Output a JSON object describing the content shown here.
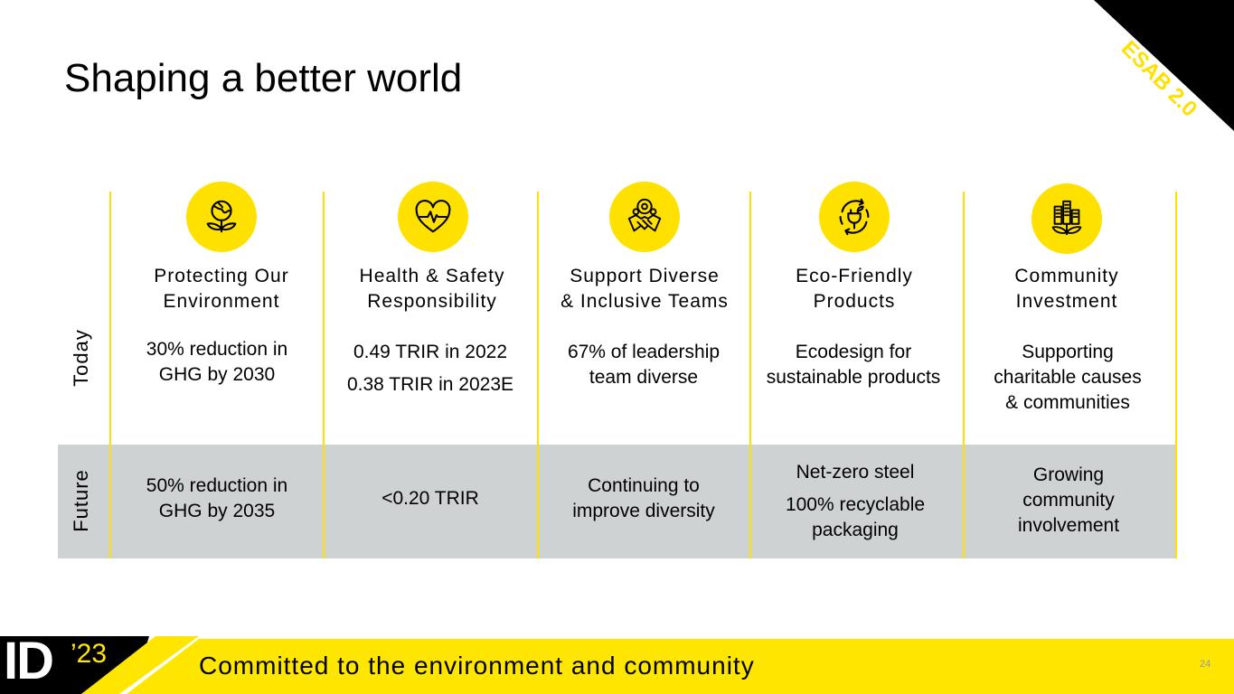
{
  "title": "Shaping a better world",
  "badge": "ESAB 2.0",
  "rows": {
    "today": "Today",
    "future": "Future"
  },
  "columns": [
    {
      "icon": "globe-plant-icon",
      "title": "Protecting Our\nEnvironment",
      "today": [
        "30% reduction in\nGHG by 2030"
      ],
      "future": [
        "50% reduction in\nGHG by 2035"
      ]
    },
    {
      "icon": "heart-pulse-icon",
      "title": "Health & Safety\nResponsibility",
      "today": [
        "0.49 TRIR in 2022",
        "0.38 TRIR in 2023E"
      ],
      "future": [
        "<0.20 TRIR"
      ]
    },
    {
      "icon": "team-handshake-icon",
      "title": "Support Diverse\n& Inclusive Teams",
      "today": [
        "67% of leadership\nteam diverse"
      ],
      "future": [
        "Continuing to\nimprove diversity"
      ]
    },
    {
      "icon": "eco-plug-icon",
      "title": "Eco-Friendly\nProducts",
      "today": [
        "Ecodesign for\nsustainable products"
      ],
      "future": [
        "Net-zero steel",
        "100% recyclable\npackaging"
      ]
    },
    {
      "icon": "city-plant-icon",
      "title": "Community\nInvestment",
      "today": [
        "Supporting\ncharitable causes\n& communities"
      ],
      "future": [
        "Growing\ncommunity\ninvolvement"
      ]
    }
  ],
  "footer": {
    "logo_id": "ID",
    "logo_year": "’23",
    "tagline": "Committed to the environment and community",
    "page_number": "24"
  },
  "colors": {
    "accent": "#ffe100",
    "band": "#cfd2d3"
  }
}
